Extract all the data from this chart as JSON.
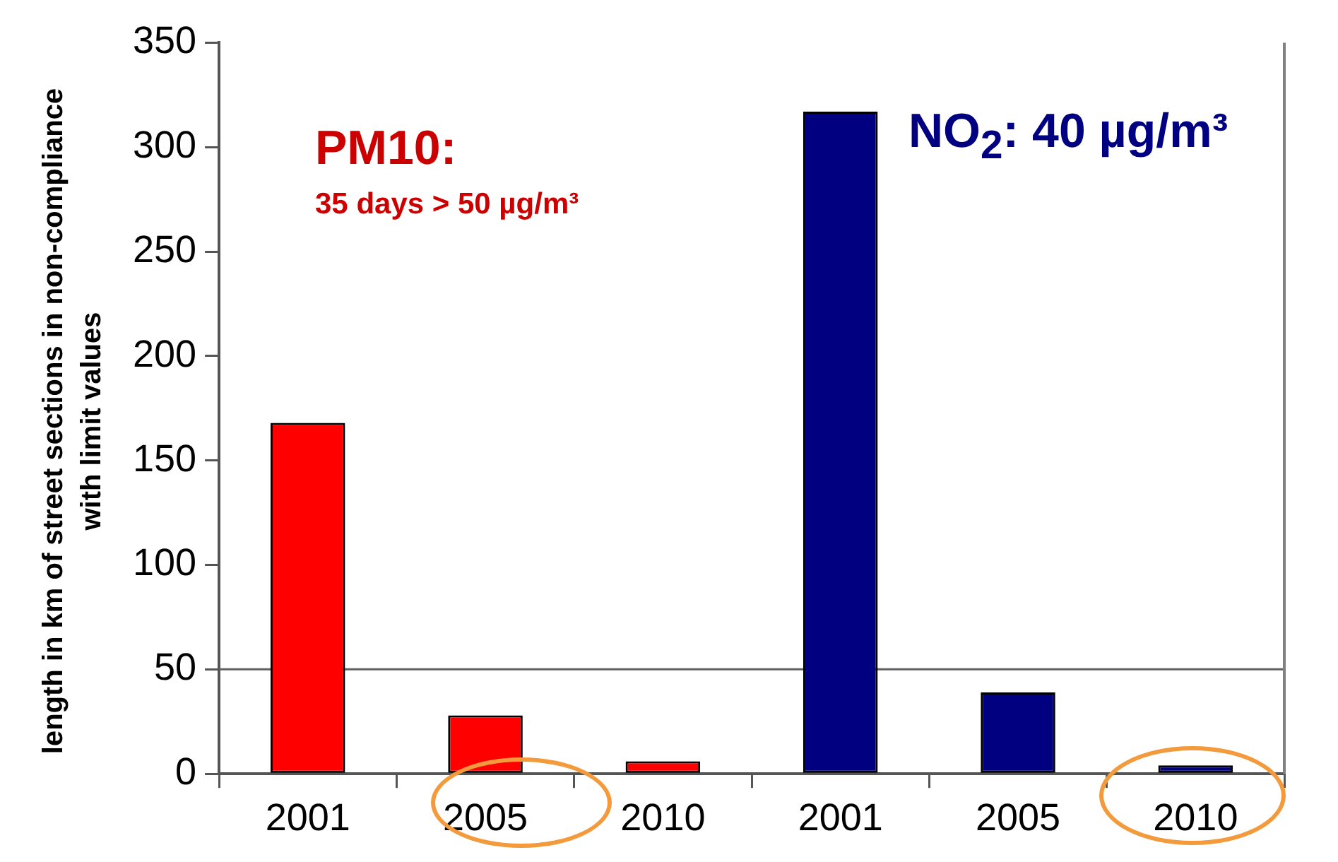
{
  "chart_data": {
    "type": "bar",
    "ylabel": "length in km of street sections in non-compliance with limit values",
    "categories": [
      "2001",
      "2005",
      "2010",
      "2001",
      "2005",
      "2010"
    ],
    "values": [
      168,
      28,
      6,
      317,
      39,
      4
    ],
    "colors": [
      "#ff0000",
      "#ff0000",
      "#ff0000",
      "#000080",
      "#000080",
      "#000080"
    ],
    "ylim": [
      0,
      350
    ],
    "yticks": [
      0,
      50,
      100,
      150,
      200,
      250,
      300,
      350
    ],
    "ref_lines": [
      {
        "axis": "y",
        "value": 50,
        "color": "#606060"
      }
    ],
    "annotations": [
      "PM10:",
      "35 days > 50 µg/m³",
      "NO$_{2}$: 40 µg/m³"
    ],
    "grid": false,
    "legend": false
  }
}
